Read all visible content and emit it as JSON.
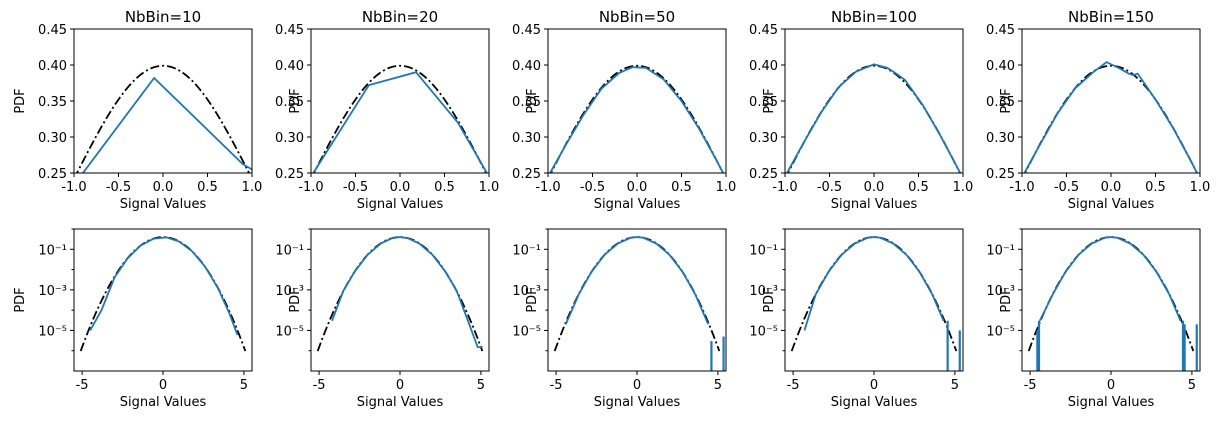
{
  "figure": {
    "colors": {
      "empirical": "#1f77b4",
      "reference": "#000000"
    }
  },
  "chart_data": [
    {
      "type": "line",
      "title": "NbBin=10",
      "xlabel": "Signal Values",
      "ylabel": "PDF",
      "xlim": [
        -1,
        1
      ],
      "ylim": [
        0.25,
        0.45
      ],
      "yscale": "linear",
      "xticks": [
        "-1.0",
        "-0.5",
        "0.0",
        "0.5",
        "1.0"
      ],
      "yticks": [
        "0.25",
        "0.30",
        "0.35",
        "0.40",
        "0.45"
      ],
      "series": [
        {
          "style": "solid",
          "color": "#1f77b4",
          "x": [
            -1.0,
            -0.9,
            -0.1,
            0.9,
            1.0
          ],
          "y": [
            0.235,
            0.25,
            0.382,
            0.262,
            0.255
          ]
        }
      ],
      "reference": "gaussian",
      "spikes": []
    },
    {
      "type": "line",
      "title": "NbBin=20",
      "xlabel": "Signal Values",
      "ylabel": "PDF",
      "xlim": [
        -1,
        1
      ],
      "ylim": [
        0.25,
        0.45
      ],
      "yscale": "linear",
      "xticks": [
        "-1.0",
        "-0.5",
        "0.0",
        "0.5",
        "1.0"
      ],
      "yticks": [
        "0.25",
        "0.30",
        "0.35",
        "0.40",
        "0.45"
      ],
      "series": [
        {
          "style": "solid",
          "color": "#1f77b4",
          "x": [
            -1.0,
            -0.35,
            0.18,
            0.65,
            1.0
          ],
          "y": [
            0.245,
            0.372,
            0.39,
            0.32,
            0.245
          ]
        }
      ],
      "reference": "gaussian",
      "spikes": []
    },
    {
      "type": "line",
      "title": "NbBin=50",
      "xlabel": "Signal Values",
      "ylabel": "PDF",
      "xlim": [
        -1,
        1
      ],
      "ylim": [
        0.25,
        0.45
      ],
      "yscale": "linear",
      "xticks": [
        "-1.0",
        "-0.5",
        "0.0",
        "0.5",
        "1.0"
      ],
      "yticks": [
        "0.25",
        "0.30",
        "0.35",
        "0.40",
        "0.45"
      ],
      "series": [
        {
          "style": "solid",
          "color": "#1f77b4",
          "x": [
            -1.0,
            -0.8,
            -0.6,
            -0.4,
            -0.2,
            -0.05,
            0.1,
            0.3,
            0.5,
            0.7,
            0.9,
            1.0
          ],
          "y": [
            0.245,
            0.289,
            0.331,
            0.367,
            0.389,
            0.397,
            0.396,
            0.38,
            0.35,
            0.311,
            0.266,
            0.242
          ]
        }
      ],
      "reference": "gaussian",
      "spikes": []
    },
    {
      "type": "line",
      "title": "NbBin=100",
      "xlabel": "Signal Values",
      "ylabel": "PDF",
      "xlim": [
        -1,
        1
      ],
      "ylim": [
        0.25,
        0.45
      ],
      "yscale": "linear",
      "xticks": [
        "-1.0",
        "-0.5",
        "0.0",
        "0.5",
        "1.0"
      ],
      "yticks": [
        "0.25",
        "0.30",
        "0.35",
        "0.40",
        "0.45"
      ],
      "series": [
        {
          "style": "solid",
          "color": "#1f77b4",
          "x": [
            -1.0,
            -0.8,
            -0.6,
            -0.4,
            -0.2,
            0.0,
            0.15,
            0.25,
            0.35,
            0.55,
            0.75,
            0.9,
            1.0
          ],
          "y": [
            0.245,
            0.29,
            0.333,
            0.369,
            0.391,
            0.401,
            0.396,
            0.388,
            0.379,
            0.344,
            0.301,
            0.266,
            0.243
          ]
        }
      ],
      "reference": "gaussian",
      "spikes": []
    },
    {
      "type": "line",
      "title": "NbBin=150",
      "xlabel": "Signal Values",
      "ylabel": "PDF",
      "xlim": [
        -1,
        1
      ],
      "ylim": [
        0.25,
        0.45
      ],
      "yscale": "linear",
      "xticks": [
        "-1.0",
        "-0.5",
        "0.0",
        "0.5",
        "1.0"
      ],
      "yticks": [
        "0.25",
        "0.30",
        "0.35",
        "0.40",
        "0.45"
      ],
      "series": [
        {
          "style": "solid",
          "color": "#1f77b4",
          "x": [
            -1.0,
            -0.8,
            -0.6,
            -0.4,
            -0.2,
            -0.05,
            0.1,
            0.2,
            0.25,
            0.3,
            0.5,
            0.7,
            0.9,
            1.0
          ],
          "y": [
            0.244,
            0.289,
            0.333,
            0.368,
            0.39,
            0.404,
            0.395,
            0.388,
            0.386,
            0.388,
            0.352,
            0.312,
            0.266,
            0.242
          ]
        }
      ],
      "reference": "gaussian",
      "spikes": []
    },
    {
      "type": "line",
      "title": "",
      "xlabel": "Signal Values",
      "ylabel": "PDF",
      "xlim": [
        -5.5,
        5.5
      ],
      "ylim": [
        1e-07,
        1
      ],
      "yscale": "log",
      "xticks": [
        "-5",
        "0",
        "5"
      ],
      "xtick_values": [
        -5,
        0,
        5
      ],
      "yticks": [
        "10⁻⁵",
        "10⁻³",
        "10⁻¹"
      ],
      "ytick_values": [
        1e-05,
        0.001,
        0.1
      ],
      "series": [
        {
          "style": "solid",
          "color": "#1f77b4",
          "x": [
            -4.5,
            -3.8,
            -3.0,
            -2.2,
            -1.4,
            -0.6,
            0.2,
            1.0,
            1.8,
            2.6,
            3.4,
            4.1,
            4.6
          ],
          "y": [
            1e-05,
            0.0001,
            0.004,
            0.035,
            0.15,
            0.33,
            0.39,
            0.24,
            0.08,
            0.014,
            0.0012,
            7e-05,
            6e-06
          ]
        }
      ],
      "reference": "gaussian",
      "spikes": []
    },
    {
      "type": "line",
      "title": "",
      "xlabel": "Signal Values",
      "ylabel": "PDF",
      "xlim": [
        -5.5,
        5.5
      ],
      "ylim": [
        1e-07,
        1
      ],
      "yscale": "log",
      "xticks": [
        "-5",
        "0",
        "5"
      ],
      "xtick_values": [
        -5,
        0,
        5
      ],
      "yticks": [
        "10⁻⁵",
        "10⁻³",
        "10⁻¹"
      ],
      "ytick_values": [
        1e-05,
        0.001,
        0.1
      ],
      "series": [
        {
          "style": "solid",
          "color": "#1f77b4",
          "x": [
            -4.2,
            -3.5,
            -2.8,
            -2.0,
            -1.2,
            -0.5,
            0.0,
            0.5,
            1.2,
            2.0,
            2.8,
            3.5,
            4.2,
            4.6,
            4.8,
            5.1
          ],
          "y": [
            3e-05,
            0.0009,
            0.008,
            0.054,
            0.19,
            0.35,
            0.399,
            0.35,
            0.19,
            0.054,
            0.008,
            0.0009,
            3e-05,
            4e-06,
            1.5e-06,
            1.5e-06
          ]
        }
      ],
      "reference": "gaussian",
      "spikes": []
    },
    {
      "type": "line",
      "title": "",
      "xlabel": "Signal Values",
      "ylabel": "PDF",
      "xlim": [
        -5.5,
        5.5
      ],
      "ylim": [
        1e-07,
        1
      ],
      "yscale": "log",
      "xticks": [
        "-5",
        "0",
        "5"
      ],
      "xtick_values": [
        -5,
        0,
        5
      ],
      "yticks": [
        "10⁻⁵",
        "10⁻³",
        "10⁻¹"
      ],
      "ytick_values": [
        1e-05,
        0.001,
        0.1
      ],
      "series": [
        {
          "style": "solid",
          "color": "#1f77b4",
          "x": [
            -4.4,
            -3.6,
            -2.8,
            -2.0,
            -1.2,
            -0.4,
            0.0,
            0.4,
            1.2,
            2.0,
            2.8,
            3.6,
            4.4
          ],
          "y": [
            2e-05,
            0.0006,
            0.008,
            0.054,
            0.19,
            0.37,
            0.399,
            0.37,
            0.19,
            0.054,
            0.008,
            0.0006,
            2e-05
          ]
        }
      ],
      "reference": "gaussian",
      "spikes": [
        {
          "x": 4.6,
          "y": 3e-06
        },
        {
          "x": 5.35,
          "y": 5e-06
        }
      ]
    },
    {
      "type": "line",
      "title": "",
      "xlabel": "Signal Values",
      "ylabel": "PDF",
      "xlim": [
        -5.5,
        5.5
      ],
      "ylim": [
        1e-07,
        1
      ],
      "yscale": "log",
      "xticks": [
        "-5",
        "0",
        "5"
      ],
      "xtick_values": [
        -5,
        0,
        5
      ],
      "yticks": [
        "10⁻⁵",
        "10⁻³",
        "10⁻¹"
      ],
      "ytick_values": [
        1e-05,
        0.001,
        0.1
      ],
      "series": [
        {
          "style": "solid",
          "color": "#1f77b4",
          "x": [
            -4.3,
            -3.6,
            -2.8,
            -2.0,
            -1.2,
            -0.4,
            0.0,
            0.4,
            1.2,
            2.0,
            2.8,
            3.6,
            4.3
          ],
          "y": [
            1e-05,
            0.0006,
            0.008,
            0.054,
            0.19,
            0.37,
            0.399,
            0.37,
            0.19,
            0.054,
            0.008,
            0.0006,
            3e-05
          ]
        }
      ],
      "reference": "gaussian",
      "spikes": [
        {
          "x": 4.55,
          "y": 3e-05
        },
        {
          "x": 5.3,
          "y": 1e-05
        }
      ]
    },
    {
      "type": "line",
      "title": "",
      "xlabel": "Signal Values",
      "ylabel": "PDF",
      "xlim": [
        -5.5,
        5.5
      ],
      "ylim": [
        1e-07,
        1
      ],
      "yscale": "log",
      "xticks": [
        "-5",
        "0",
        "5"
      ],
      "xtick_values": [
        -5,
        0,
        5
      ],
      "yticks": [
        "10⁻⁵",
        "10⁻³",
        "10⁻¹"
      ],
      "ytick_values": [
        1e-05,
        0.001,
        0.1
      ],
      "series": [
        {
          "style": "solid",
          "color": "#1f77b4",
          "x": [
            -4.4,
            -3.6,
            -2.8,
            -2.0,
            -1.2,
            -0.4,
            0.0,
            0.4,
            1.2,
            2.0,
            2.8,
            3.6,
            4.3
          ],
          "y": [
            3e-05,
            0.0006,
            0.008,
            0.054,
            0.19,
            0.37,
            0.399,
            0.37,
            0.19,
            0.054,
            0.008,
            0.0006,
            3e-05
          ]
        }
      ],
      "reference": "gaussian",
      "spikes": [
        {
          "x": -4.45,
          "y": 3e-05
        },
        {
          "x": -4.55,
          "y": 1e-05
        },
        {
          "x": 4.45,
          "y": 3e-05
        },
        {
          "x": 4.55,
          "y": 2e-05
        },
        {
          "x": 5.3,
          "y": 2e-05
        }
      ]
    }
  ]
}
